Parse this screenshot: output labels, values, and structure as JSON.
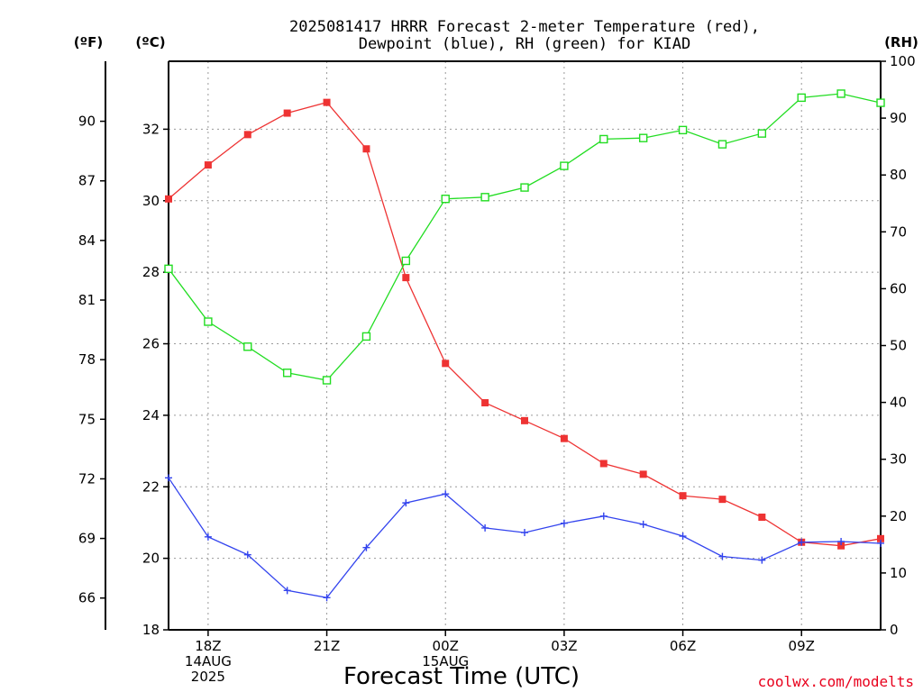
{
  "chart_data": {
    "type": "line",
    "title": [
      "2025081417 HRRR Forecast 2-meter Temperature (red),",
      "Dewpoint (blue), RH (green) for KIAD"
    ],
    "xlabel": "Forecast Time (UTC)",
    "credit": "coolwx.com/modelts",
    "units": {
      "fahrenheit": "(ºF)",
      "celsius": "(ºC)",
      "rh": "(RH)"
    },
    "x": [
      "17Z",
      "18Z",
      "19Z",
      "20Z",
      "21Z",
      "22Z",
      "23Z",
      "00Z",
      "01Z",
      "02Z",
      "03Z",
      "04Z",
      "05Z",
      "06Z",
      "07Z",
      "08Z",
      "09Z",
      "10Z",
      "11Z"
    ],
    "x_ticks": [
      {
        "label": [
          "18Z",
          "14AUG",
          "2025"
        ],
        "index": 1
      },
      {
        "label": [
          "21Z"
        ],
        "index": 4
      },
      {
        "label": [
          "00Z",
          "15AUG"
        ],
        "index": 7
      },
      {
        "label": [
          "03Z"
        ],
        "index": 10
      },
      {
        "label": [
          "06Z"
        ],
        "index": 13
      },
      {
        "label": [
          "09Z"
        ],
        "index": 16
      }
    ],
    "left_axis_celsius": {
      "ticks": [
        "18",
        "20",
        "22",
        "24",
        "26",
        "28",
        "30",
        "32"
      ],
      "ylim": [
        18,
        33.9
      ]
    },
    "left_axis_fahrenheit": {
      "ticks": [
        "66",
        "69",
        "72",
        "75",
        "78",
        "81",
        "84",
        "87",
        "90"
      ]
    },
    "right_axis_rh": {
      "ticks": [
        "0",
        "10",
        "20",
        "30",
        "40",
        "50",
        "60",
        "70",
        "80",
        "90",
        "100"
      ],
      "ylim": [
        0,
        100
      ]
    },
    "grid": true,
    "series": [
      {
        "name": "Temperature",
        "axis": "celsius",
        "color": "#ee3333",
        "marker": "filled-square",
        "values": [
          30.05,
          31.0,
          31.85,
          32.45,
          32.75,
          31.45,
          27.85,
          25.45,
          24.35,
          23.85,
          23.35,
          22.65,
          22.35,
          21.75,
          21.65,
          21.15,
          20.45,
          20.35,
          20.55
        ]
      },
      {
        "name": "Dewpoint",
        "axis": "celsius",
        "color": "#3344ee",
        "marker": "plus",
        "values": [
          22.25,
          20.6,
          20.1,
          19.1,
          18.9,
          20.3,
          21.55,
          21.8,
          20.85,
          20.72,
          20.98,
          21.18,
          20.95,
          20.62,
          20.05,
          19.95,
          20.45,
          20.47,
          20.42
        ]
      },
      {
        "name": "RH",
        "axis": "rh",
        "color": "#22dd22",
        "marker": "open-square",
        "values": [
          63.5,
          54.2,
          49.8,
          45.2,
          43.9,
          51.6,
          64.9,
          75.8,
          76.1,
          77.8,
          81.6,
          86.3,
          86.5,
          87.9,
          85.4,
          87.3,
          93.6,
          94.3,
          92.7
        ]
      }
    ]
  }
}
